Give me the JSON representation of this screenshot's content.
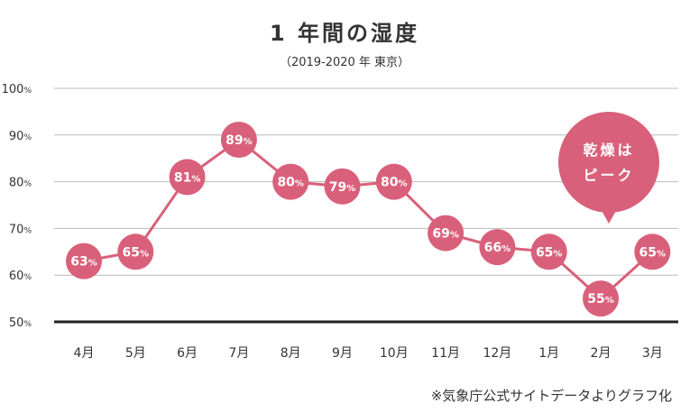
{
  "chart_data": {
    "type": "line",
    "title": "1 年間の湿度",
    "subtitle": "（2019-2020 年 東京）",
    "categories": [
      "4月",
      "5月",
      "6月",
      "7月",
      "8月",
      "9月",
      "10月",
      "11月",
      "12月",
      "1月",
      "2月",
      "3月"
    ],
    "series": [
      {
        "values": [
          63,
          65,
          81,
          89,
          80,
          79,
          80,
          69,
          66,
          65,
          55,
          65
        ]
      }
    ],
    "data_labels": [
      "63%",
      "65%",
      "81%",
      "89%",
      "80%",
      "79%",
      "80%",
      "69%",
      "66%",
      "65%",
      "55%",
      "65%"
    ],
    "ylim": [
      50,
      100
    ],
    "yticks": [
      {
        "value": 100,
        "num": "100",
        "unit": "%"
      },
      {
        "value": 90,
        "num": "90",
        "unit": "%"
      },
      {
        "value": 80,
        "num": "80",
        "unit": "%"
      },
      {
        "value": 70,
        "num": "70",
        "unit": "%"
      },
      {
        "value": 60,
        "num": "60",
        "unit": "%"
      },
      {
        "value": 50,
        "num": "50",
        "unit": "%"
      }
    ],
    "grid": true,
    "annotation": {
      "line1": "乾燥は",
      "line2": "ピーク",
      "target_category": "2月"
    },
    "note": "※気象庁公式サイトデータよりグラフ化",
    "colors": {
      "series": "#d9607a",
      "grid": "#bbbbbb",
      "baseline": "#222222",
      "text": "#333333"
    }
  }
}
